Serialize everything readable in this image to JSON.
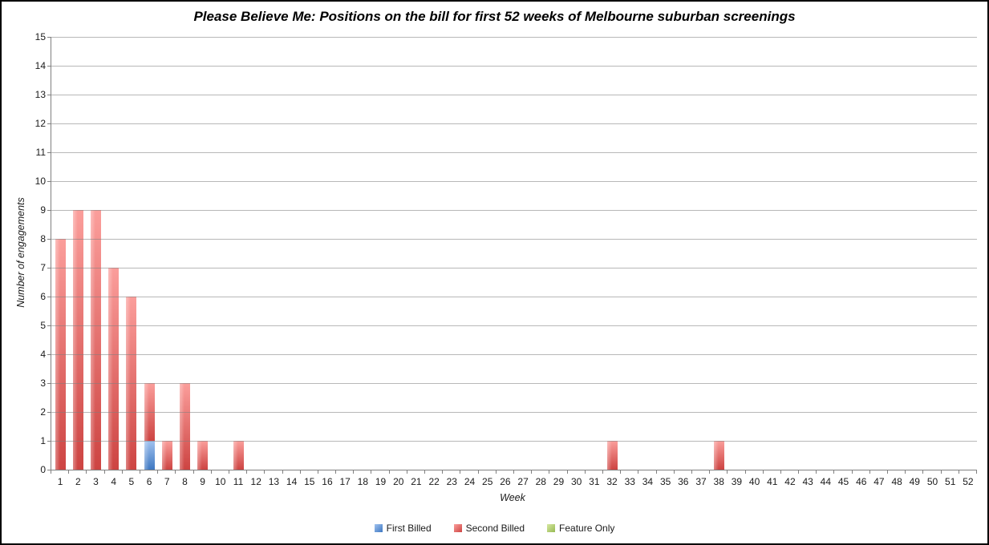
{
  "chart_data": {
    "type": "bar",
    "stacked": true,
    "title": "Please Believe Me: Positions on the bill for first 52 weeks of Melbourne suburban screenings",
    "xlabel": "Week",
    "ylabel": "Number of engagements",
    "x": [
      1,
      2,
      3,
      4,
      5,
      6,
      7,
      8,
      9,
      10,
      11,
      12,
      13,
      14,
      15,
      16,
      17,
      18,
      19,
      20,
      21,
      22,
      23,
      24,
      25,
      26,
      27,
      28,
      29,
      30,
      31,
      32,
      33,
      34,
      35,
      36,
      37,
      38,
      39,
      40,
      41,
      42,
      43,
      44,
      45,
      46,
      47,
      48,
      49,
      50,
      51,
      52
    ],
    "series": [
      {
        "name": "First Billed",
        "color_top": "#A0C2EF",
        "color_bottom": "#3E78C2",
        "values": [
          0,
          0,
          0,
          0,
          0,
          1,
          0,
          0,
          0,
          0,
          0,
          0,
          0,
          0,
          0,
          0,
          0,
          0,
          0,
          0,
          0,
          0,
          0,
          0,
          0,
          0,
          0,
          0,
          0,
          0,
          0,
          0,
          0,
          0,
          0,
          0,
          0,
          0,
          0,
          0,
          0,
          0,
          0,
          0,
          0,
          0,
          0,
          0,
          0,
          0,
          0,
          0
        ]
      },
      {
        "name": "Second Billed",
        "color_top": "#FB9E9B",
        "color_bottom": "#CD4442",
        "values": [
          8,
          9,
          9,
          7,
          6,
          2,
          1,
          3,
          1,
          0,
          1,
          0,
          0,
          0,
          0,
          0,
          0,
          0,
          0,
          0,
          0,
          0,
          0,
          0,
          0,
          0,
          0,
          0,
          0,
          0,
          0,
          1,
          0,
          0,
          0,
          0,
          0,
          1,
          0,
          0,
          0,
          0,
          0,
          0,
          0,
          0,
          0,
          0,
          0,
          0,
          0,
          0
        ]
      },
      {
        "name": "Feature Only",
        "color_top": "#D7E8A2",
        "color_bottom": "#96BA52",
        "values": [
          0,
          0,
          0,
          0,
          0,
          0,
          0,
          0,
          0,
          0,
          0,
          0,
          0,
          0,
          0,
          0,
          0,
          0,
          0,
          0,
          0,
          0,
          0,
          0,
          0,
          0,
          0,
          0,
          0,
          0,
          0,
          0,
          0,
          0,
          0,
          0,
          0,
          0,
          0,
          0,
          0,
          0,
          0,
          0,
          0,
          0,
          0,
          0,
          0,
          0,
          0,
          0
        ]
      }
    ],
    "ylim": [
      0,
      15
    ],
    "ytick_step": 1,
    "grid": true,
    "grid_color": "#A6A6A6",
    "axis_color": "#808080",
    "legend_position": "bottom"
  }
}
